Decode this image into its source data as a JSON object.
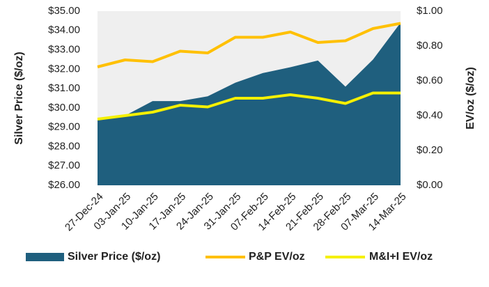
{
  "chart_data": {
    "type": "area-line",
    "categories": [
      "27-Dec-24",
      "03-Jan-25",
      "10-Jan-25",
      "17-Jan-25",
      "24-Jan-25",
      "31-Jan-25",
      "07-Feb-25",
      "14-Feb-25",
      "21-Feb-25",
      "28-Feb-25",
      "07-Mar-25",
      "14-Mar-25"
    ],
    "series": [
      {
        "name": "Silver Price ($/oz)",
        "color": "#1f5f7e",
        "kind": "area",
        "values": [
          29.4,
          29.6,
          30.35,
          30.35,
          30.6,
          31.3,
          31.8,
          32.1,
          32.45,
          31.1,
          32.5,
          34.4
        ]
      },
      {
        "name": "P&P EV/oz",
        "color": "#ffc000",
        "kind": "line",
        "axis": "y2",
        "values": [
          0.68,
          0.72,
          0.71,
          0.77,
          0.76,
          0.85,
          0.85,
          0.88,
          0.82,
          0.83,
          0.9,
          0.93
        ]
      },
      {
        "name": "M&I+I EV/oz",
        "color": "#f5f000",
        "kind": "line",
        "axis": "y2",
        "values": [
          0.38,
          0.4,
          0.42,
          0.46,
          0.45,
          0.5,
          0.5,
          0.52,
          0.5,
          0.47,
          0.53,
          0.53
        ]
      }
    ],
    "ylabel": "Silver Price ($/oz)",
    "y2label": "EV/oz ($/oz)",
    "ylim": [
      26,
      35
    ],
    "yticks": [
      {
        "value": 26,
        "label": "$26.00"
      },
      {
        "value": 27,
        "label": "$27.00"
      },
      {
        "value": 28,
        "label": "$28.00"
      },
      {
        "value": 29,
        "label": "$29.00"
      },
      {
        "value": 30,
        "label": "$30.00"
      },
      {
        "value": 31,
        "label": "$31.00"
      },
      {
        "value": 32,
        "label": "$32.00"
      },
      {
        "value": 33,
        "label": "$33.00"
      },
      {
        "value": 34,
        "label": "$34.00"
      },
      {
        "value": 35,
        "label": "$35.00"
      }
    ],
    "y2lim": [
      0,
      1
    ],
    "y2ticks": [
      {
        "value": 0,
        "label": "$0.00"
      },
      {
        "value": 0.2,
        "label": "$0.20"
      },
      {
        "value": 0.4,
        "label": "$0.40"
      },
      {
        "value": 0.6,
        "label": "$0.60"
      },
      {
        "value": 0.8,
        "label": "$0.80"
      },
      {
        "value": 1,
        "label": "$1.00"
      }
    ],
    "legend": "bottom"
  }
}
